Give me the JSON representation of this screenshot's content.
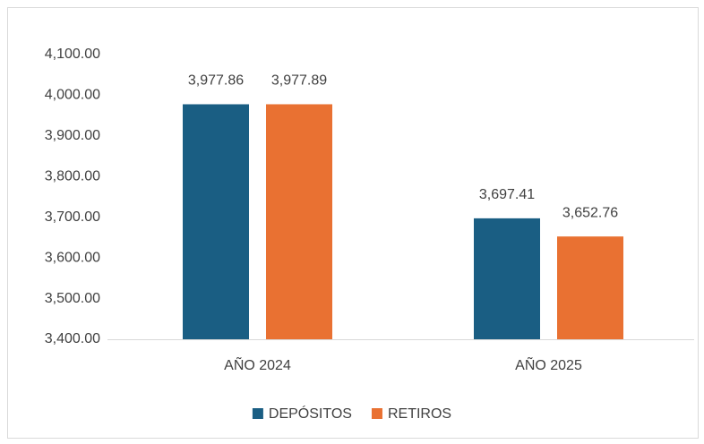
{
  "chart_data": {
    "type": "bar",
    "categories": [
      "AÑO 2024",
      "AÑO 2025"
    ],
    "series": [
      {
        "name": "DEPÓSITOS",
        "color": "#1a5e83",
        "values": [
          3977.86,
          3697.41
        ],
        "value_labels": [
          "3,977.86",
          "3,697.41"
        ]
      },
      {
        "name": "RETIROS",
        "color": "#e97132",
        "values": [
          3977.89,
          3652.76
        ],
        "value_labels": [
          "3,977.89",
          "3,652.76"
        ]
      }
    ],
    "ylim": [
      3400,
      4100
    ],
    "yticks": [
      {
        "value": 3400,
        "label": "3,400.00"
      },
      {
        "value": 3500,
        "label": "3,500.00"
      },
      {
        "value": 3600,
        "label": "3,600.00"
      },
      {
        "value": 3700,
        "label": "3,700.00"
      },
      {
        "value": 3800,
        "label": "3,800.00"
      },
      {
        "value": 3900,
        "label": "3,900.00"
      },
      {
        "value": 4000,
        "label": "4,000.00"
      },
      {
        "value": 4100,
        "label": "4,100.00"
      }
    ],
    "grid": false,
    "legend": "bottom"
  }
}
